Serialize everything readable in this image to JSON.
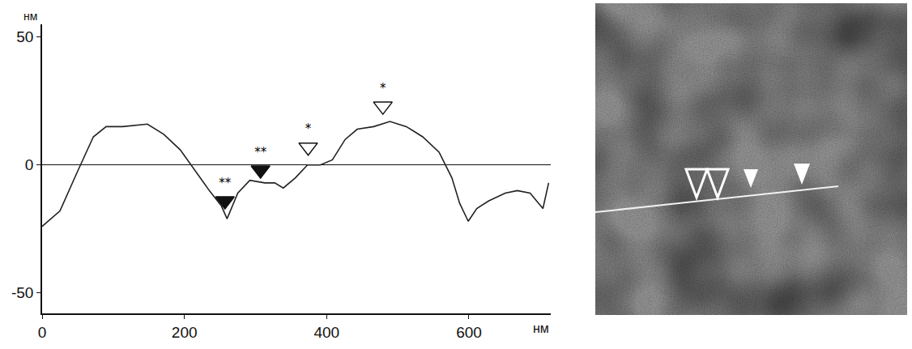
{
  "chart_data": {
    "type": "line",
    "x": [
      0,
      25,
      49,
      72,
      90,
      113,
      148,
      171,
      194,
      217,
      235,
      252,
      260,
      275,
      292,
      313,
      327,
      339,
      356,
      373,
      391,
      408,
      426,
      443,
      466,
      489,
      512,
      535,
      558,
      576,
      587,
      599,
      611,
      628,
      651,
      668,
      686,
      698,
      704,
      712
    ],
    "values": [
      -24,
      -18,
      -3,
      11,
      15,
      15,
      16,
      12,
      6,
      -3,
      -10,
      -16,
      -21,
      -11,
      -6,
      -7,
      -7,
      -9,
      -5,
      0,
      0,
      2,
      10,
      14,
      15,
      17,
      15,
      11,
      5,
      -5,
      -15,
      -22,
      -17,
      -14,
      -11,
      -10,
      -11,
      -15,
      -17,
      -7
    ],
    "color": "#222222",
    "xlim": [
      0,
      715
    ],
    "ylim": [
      -58,
      55
    ],
    "xticks": [
      0,
      200,
      400,
      600
    ],
    "yticks": [
      -50,
      0,
      50
    ],
    "x_label": "нм",
    "y_label": "нм",
    "grid": false,
    "annotations": [
      {
        "x": 257,
        "y": -14,
        "text": "**",
        "marker": "filled"
      },
      {
        "x": 307,
        "y": -2,
        "text": "**",
        "marker": "filled"
      },
      {
        "x": 374,
        "y": 7,
        "text": "*",
        "marker": "open"
      },
      {
        "x": 479,
        "y": 23,
        "text": "*",
        "marker": "open"
      }
    ]
  }
}
